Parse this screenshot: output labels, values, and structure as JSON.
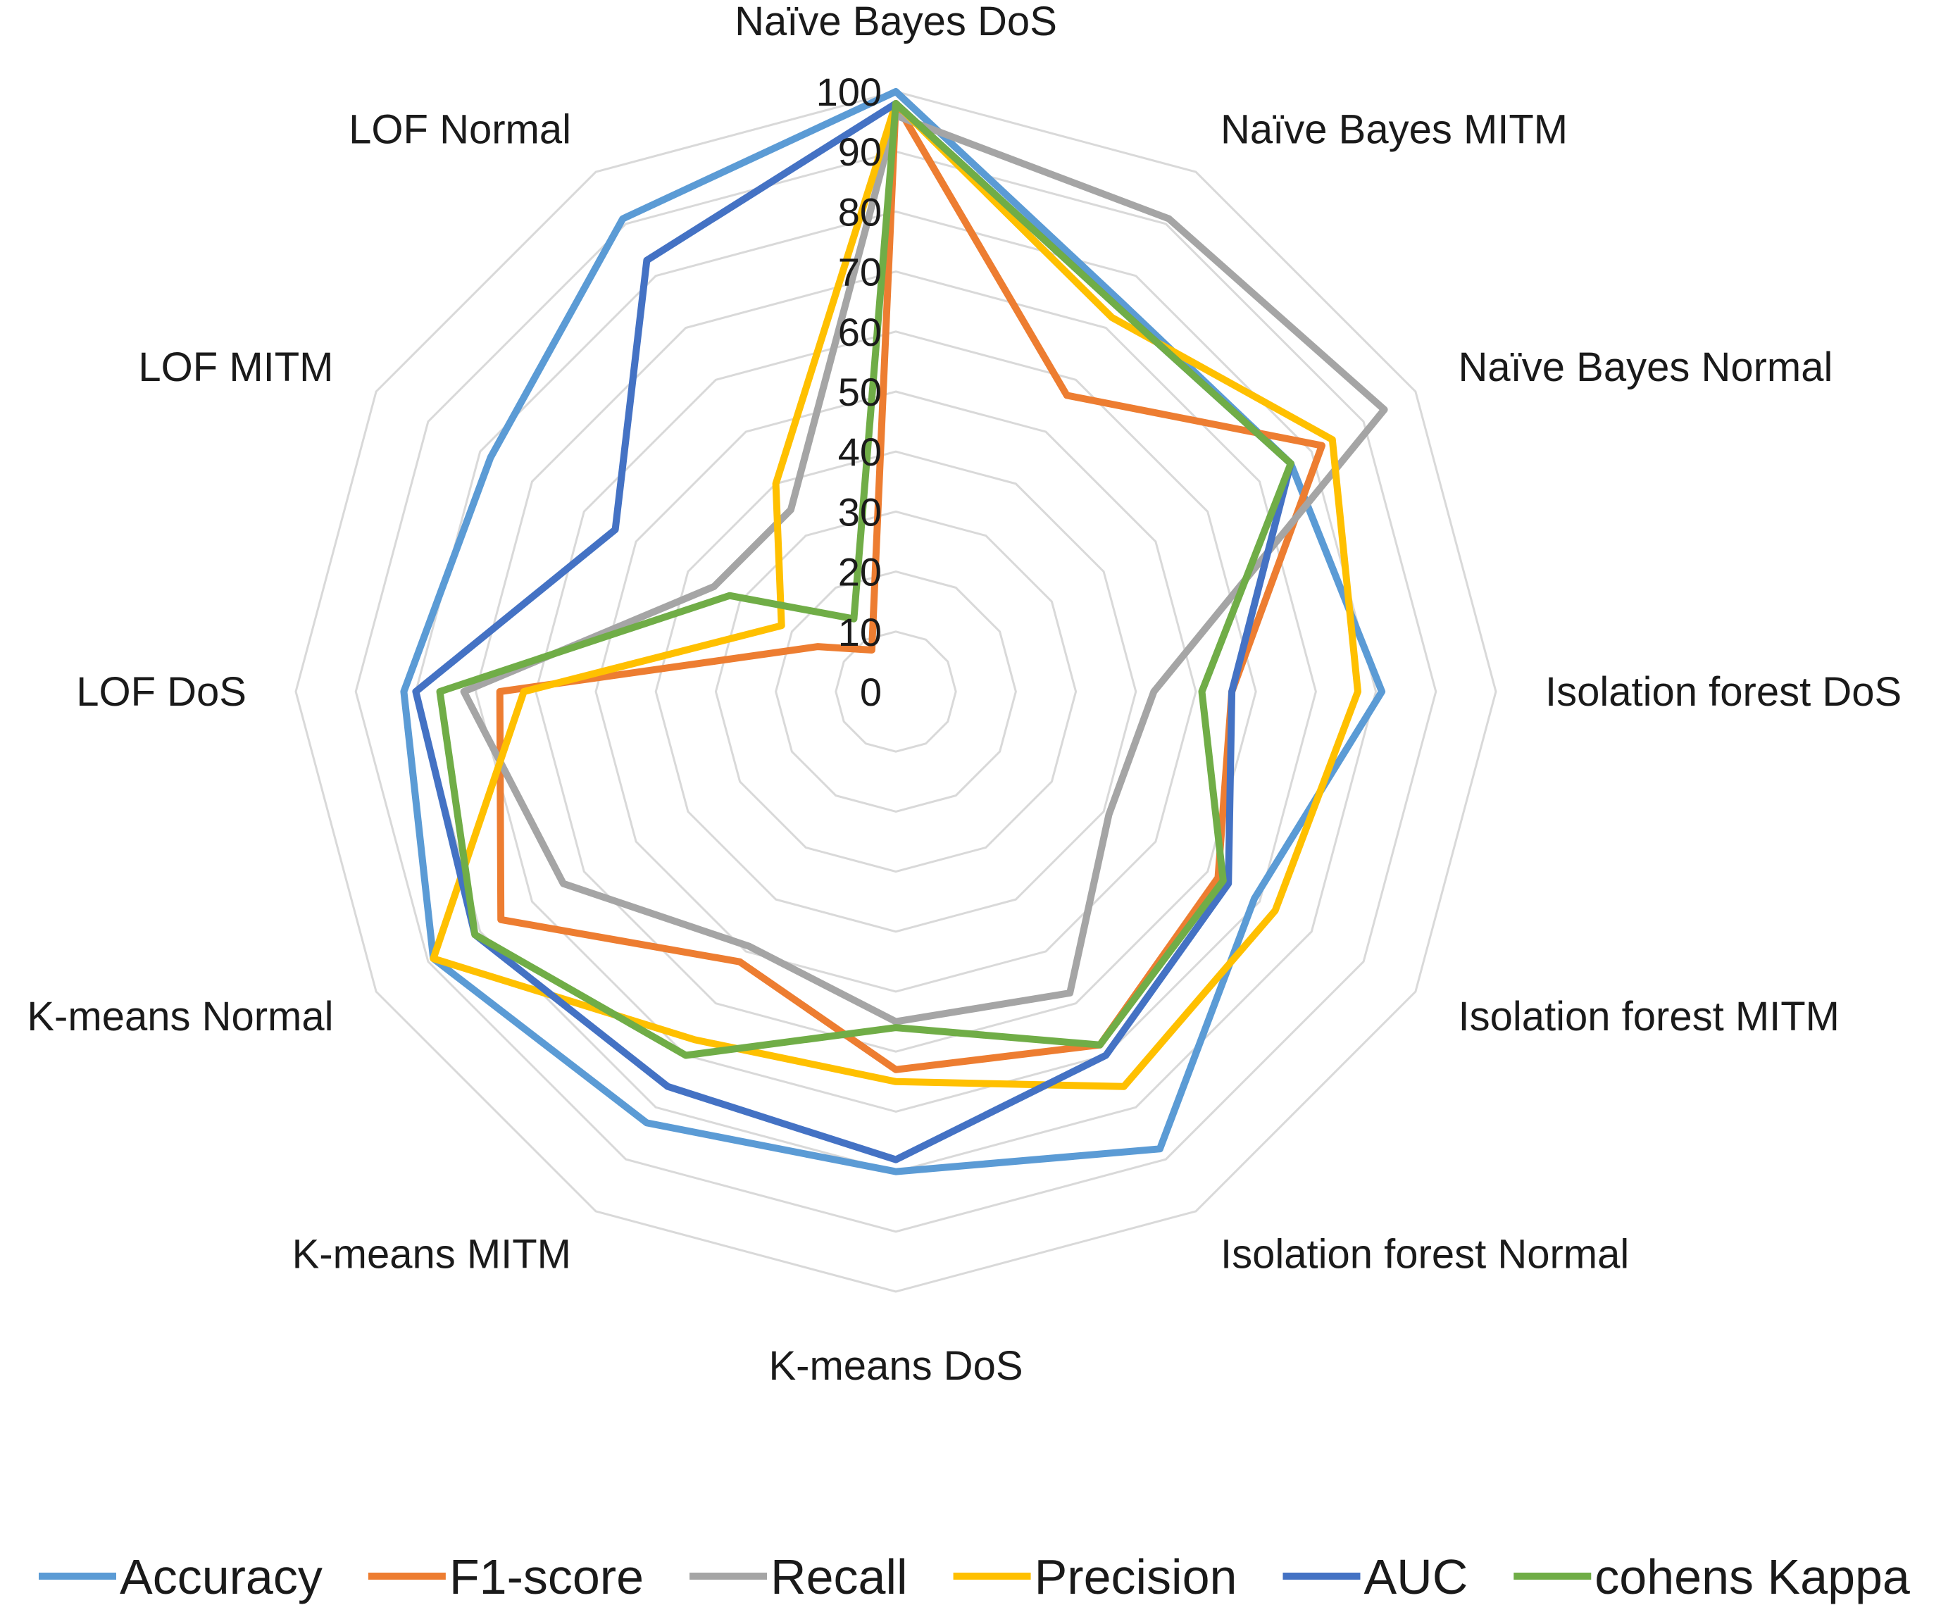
{
  "chart_data": {
    "type": "radar",
    "categories": [
      "Naïve Bayes DoS",
      "Naïve Bayes MITM",
      "Naïve Bayes Normal",
      "Isolation forest DoS",
      "Isolation forest MITM",
      "Isolation forest Normal",
      "K-means DoS",
      "K-means MITM",
      "K-means Normal",
      "LOF DoS",
      "LOF MITM",
      "LOF Normal"
    ],
    "ticks": [
      "0",
      "10",
      "20",
      "30",
      "40",
      "50",
      "60",
      "70",
      "80",
      "90",
      "100"
    ],
    "rlim": [
      0,
      100
    ],
    "grid": true,
    "legend_position": "bottom",
    "series": [
      {
        "name": "Accuracy",
        "color": "#5B9BD5",
        "values": [
          100,
          75,
          76,
          81,
          69,
          88,
          80,
          83,
          89,
          82,
          78,
          91
        ]
      },
      {
        "name": "F1-score",
        "color": "#ED7D31",
        "values": [
          98,
          57,
          82,
          56,
          62,
          68,
          63,
          52,
          76,
          66,
          15,
          8
        ]
      },
      {
        "name": "Recall",
        "color": "#A5A5A5",
        "values": [
          96,
          91,
          94,
          43,
          41,
          58,
          55,
          49,
          64,
          72,
          35,
          35
        ]
      },
      {
        "name": "Precision",
        "color": "#FFC000",
        "values": [
          98,
          72,
          84,
          77,
          73,
          76,
          65,
          67,
          89,
          62,
          22,
          40
        ]
      },
      {
        "name": "AUC",
        "color": "#4472C4",
        "values": [
          98,
          74,
          76,
          56,
          64,
          70,
          78,
          76,
          81,
          80,
          54,
          83
        ]
      },
      {
        "name": "cohens Kappa",
        "color": "#70AD47",
        "values": [
          98,
          74,
          76,
          51,
          63,
          68,
          56,
          70,
          81,
          76,
          32,
          14
        ]
      }
    ]
  }
}
